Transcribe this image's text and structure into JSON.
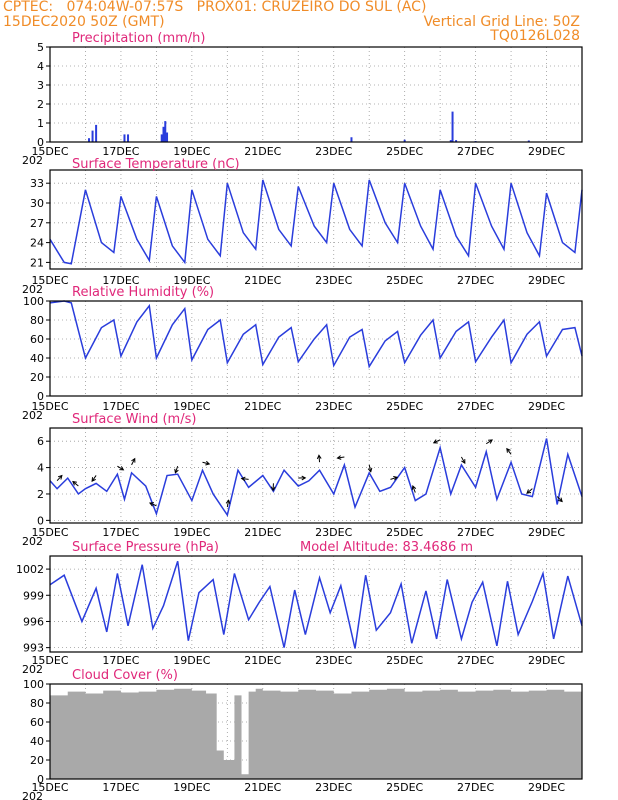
{
  "header": {
    "line1": "CPTEC:   074:04W-07:57S   PROX01: CRUZEIRO DO SUL (AC)",
    "line2_left": "15DEC2020 50Z (GMT)",
    "line2_right": "Vertical Grid Line: 50Z",
    "line3_right": "TQ0126L028",
    "color": "#f08c28"
  },
  "colors": {
    "title": "#e0287a",
    "series": "#2a3ddc",
    "cloud": "#a9a9a9",
    "wind_arrow": "#000000"
  },
  "x_labels": [
    "15DEC",
    "17DEC",
    "19DEC",
    "21DEC",
    "23DEC",
    "25DEC",
    "27DEC",
    "29DEC"
  ],
  "x_sub_label": "202",
  "chart_data": [
    {
      "type": "bar",
      "title": "Precipitation (mm/h)",
      "ylim": [
        0,
        5
      ],
      "yticks": [
        "0",
        "1",
        "2",
        "3",
        "4",
        "5"
      ],
      "x": [
        1.1,
        1.2,
        1.3,
        2.1,
        2.2,
        3.15,
        3.2,
        3.25,
        3.3,
        8.5,
        10.0,
        11.3,
        11.35,
        11.45,
        12.0,
        13.5
      ],
      "values": [
        0.2,
        0.6,
        0.9,
        0.4,
        0.4,
        0.4,
        0.8,
        1.1,
        0.5,
        0.25,
        0.12,
        0.1,
        1.6,
        0.1,
        0.05,
        0.08
      ]
    },
    {
      "type": "line",
      "title": "Surface Temperature (nC)",
      "ylim": [
        20,
        35
      ],
      "yticks": [
        "21",
        "24",
        "27",
        "30",
        "33"
      ],
      "x": [
        0.0,
        0.4,
        0.6,
        1.0,
        1.45,
        1.8,
        2.0,
        2.45,
        2.8,
        3.0,
        3.45,
        3.8,
        4.0,
        4.45,
        4.8,
        5.0,
        5.45,
        5.8,
        6.0,
        6.45,
        6.8,
        7.0,
        7.45,
        7.8,
        8.0,
        8.45,
        8.8,
        9.0,
        9.45,
        9.8,
        10.0,
        10.45,
        10.8,
        11.0,
        11.45,
        11.8,
        12.0,
        12.45,
        12.8,
        13.0,
        13.45,
        13.8,
        14.0,
        14.45,
        14.8,
        15.0
      ],
      "values": [
        24.5,
        21.0,
        20.8,
        32.0,
        24.0,
        22.5,
        31.0,
        24.5,
        21.3,
        31.0,
        23.5,
        21.0,
        32.0,
        24.5,
        22.0,
        33.0,
        25.5,
        23.0,
        33.5,
        26.0,
        23.5,
        32.5,
        26.5,
        24.0,
        33.0,
        26.0,
        23.5,
        33.5,
        27.0,
        24.0,
        33.0,
        26.5,
        23.0,
        32.0,
        25.0,
        22.0,
        33.0,
        26.5,
        23.0,
        33.0,
        25.5,
        22.0,
        31.5,
        24.0,
        22.5,
        32.0
      ]
    },
    {
      "type": "line",
      "title": "Relative Humidity (%)",
      "ylim": [
        0,
        100
      ],
      "yticks": [
        "0",
        "20",
        "40",
        "60",
        "80",
        "100"
      ],
      "x": [
        0.0,
        0.4,
        0.6,
        1.0,
        1.45,
        1.8,
        2.0,
        2.45,
        2.8,
        3.0,
        3.45,
        3.8,
        4.0,
        4.45,
        4.8,
        5.0,
        5.45,
        5.8,
        6.0,
        6.45,
        6.8,
        7.0,
        7.45,
        7.8,
        8.0,
        8.45,
        8.8,
        9.0,
        9.45,
        9.8,
        10.0,
        10.45,
        10.8,
        11.0,
        11.45,
        11.8,
        12.0,
        12.45,
        12.8,
        13.0,
        13.45,
        13.8,
        14.0,
        14.45,
        14.8,
        15.0
      ],
      "values": [
        98.0,
        100.0,
        98.0,
        40.0,
        72.0,
        80.0,
        42.0,
        78.0,
        95.0,
        40.0,
        75.0,
        92.0,
        38.0,
        70.0,
        80.0,
        35.0,
        65.0,
        75.0,
        33.0,
        62.0,
        72.0,
        36.0,
        60.0,
        75.0,
        32.0,
        62.0,
        70.0,
        31.0,
        58.0,
        68.0,
        35.0,
        64.0,
        80.0,
        40.0,
        68.0,
        78.0,
        36.0,
        62.0,
        80.0,
        35.0,
        65.0,
        78.0,
        42.0,
        70.0,
        72.0,
        42.0
      ]
    },
    {
      "type": "line",
      "title": "Surface Wind (m/s)",
      "ylim": [
        -0.2,
        7.0
      ],
      "yticks": [
        "0",
        "2",
        "4",
        "6"
      ],
      "x": [
        0.0,
        0.2,
        0.5,
        0.8,
        1.0,
        1.3,
        1.6,
        1.9,
        2.1,
        2.3,
        2.7,
        3.0,
        3.3,
        3.6,
        4.0,
        4.3,
        4.6,
        5.0,
        5.3,
        5.6,
        6.0,
        6.3,
        6.6,
        7.0,
        7.3,
        7.6,
        8.0,
        8.3,
        8.6,
        9.0,
        9.3,
        9.6,
        10.0,
        10.3,
        10.6,
        11.0,
        11.3,
        11.6,
        12.0,
        12.3,
        12.6,
        13.0,
        13.3,
        13.6,
        14.0,
        14.3,
        14.6,
        15.0
      ],
      "values": [
        3.0,
        2.4,
        3.2,
        2.0,
        2.4,
        2.8,
        2.2,
        3.5,
        1.6,
        3.6,
        2.6,
        0.5,
        3.4,
        3.5,
        1.5,
        3.8,
        2.0,
        0.4,
        3.8,
        2.5,
        3.4,
        2.2,
        3.8,
        2.6,
        3.0,
        3.8,
        2.0,
        4.2,
        1.0,
        3.6,
        2.2,
        2.5,
        4.0,
        1.5,
        2.0,
        5.5,
        2.0,
        4.2,
        2.5,
        5.2,
        1.6,
        4.4,
        2.0,
        1.8,
        6.2,
        1.2,
        5.0,
        1.8
      ]
    },
    {
      "type": "line",
      "title": "Surface Pressure (hPa)",
      "annotation": "Model Altitude: 83.4686 m",
      "ylim": [
        992.5,
        1003.5
      ],
      "yticks": [
        "993",
        "996",
        "999",
        "1002"
      ],
      "x": [
        0.0,
        0.4,
        0.9,
        1.3,
        1.6,
        1.9,
        2.2,
        2.6,
        2.9,
        3.2,
        3.6,
        3.9,
        4.2,
        4.6,
        4.9,
        5.2,
        5.6,
        5.9,
        6.2,
        6.6,
        6.9,
        7.2,
        7.6,
        7.9,
        8.2,
        8.6,
        8.9,
        9.2,
        9.6,
        9.9,
        10.2,
        10.6,
        10.9,
        11.2,
        11.6,
        11.9,
        12.2,
        12.6,
        12.9,
        13.2,
        13.6,
        13.9,
        14.2,
        14.6,
        15.0
      ],
      "values": [
        1000.2,
        1001.3,
        996.0,
        999.8,
        994.8,
        1001.5,
        995.5,
        1002.5,
        995.2,
        997.8,
        1002.9,
        993.8,
        999.3,
        1000.8,
        994.5,
        1001.5,
        996.2,
        998.2,
        1000.0,
        993.0,
        999.6,
        994.5,
        1001.0,
        997.0,
        1000.1,
        992.9,
        1001.3,
        995.0,
        997.0,
        1000.3,
        993.5,
        999.5,
        994.0,
        1000.8,
        994.0,
        998.2,
        1000.5,
        993.2,
        1000.6,
        994.5,
        998.3,
        1001.5,
        994.0,
        1001.2,
        995.5
      ]
    },
    {
      "type": "bar",
      "title": "Cloud Cover (%)",
      "ylim": [
        0,
        100
      ],
      "yticks": [
        "0",
        "20",
        "40",
        "60",
        "80",
        "100"
      ],
      "x": [
        0.0,
        0.5,
        1.0,
        1.5,
        2.0,
        2.5,
        3.0,
        3.5,
        4.0,
        4.4,
        4.7,
        4.9,
        5.2,
        5.4,
        5.6,
        5.8,
        6.0,
        6.5,
        7.0,
        7.5,
        8.0,
        8.5,
        9.0,
        9.5,
        10.0,
        10.5,
        11.0,
        11.5,
        12.0,
        12.5,
        13.0,
        13.5,
        14.0,
        14.5,
        15.0
      ],
      "values": [
        88,
        92,
        90,
        93,
        91,
        92,
        94,
        95,
        93,
        90,
        30,
        20,
        88,
        5,
        92,
        95,
        93,
        92,
        94,
        93,
        90,
        92,
        94,
        95,
        92,
        93,
        94,
        92,
        93,
        94,
        92,
        93,
        94,
        92,
        93
      ]
    }
  ]
}
